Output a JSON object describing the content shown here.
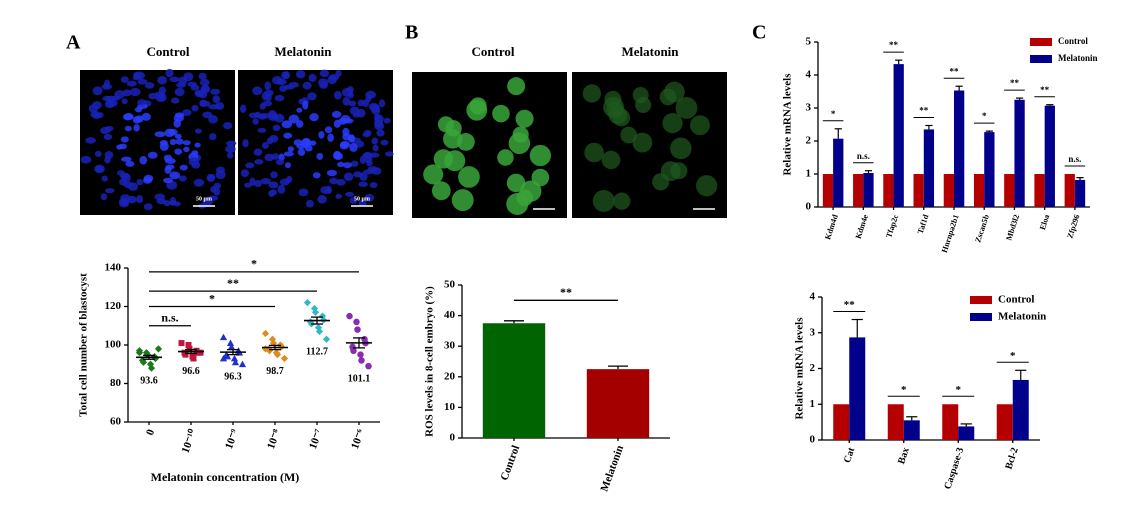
{
  "figure": {
    "panel_labels": [
      "A",
      "B",
      "C"
    ],
    "micrographs": [
      {
        "title": "Control",
        "scale_bar": "50 μm"
      },
      {
        "title": "Melatonin",
        "scale_bar": "50 μm"
      },
      {
        "title": "Control"
      },
      {
        "title": "Melatonin"
      }
    ]
  },
  "chart_data": [
    {
      "type": "dot",
      "categories": [
        "0",
        "10⁻¹⁰",
        "10⁻⁹",
        "10⁻⁸",
        "10⁻⁷",
        "10⁻⁶"
      ],
      "values": [
        93.6,
        96.6,
        96.3,
        98.7,
        112.7,
        101.1
      ],
      "errors": [
        1.0,
        1.0,
        1.3,
        1.1,
        1.8,
        2.6
      ],
      "points": [
        [
          97,
          96,
          95,
          94,
          93,
          92,
          91,
          90,
          88,
          98,
          96
        ],
        [
          101,
          100,
          98,
          97,
          96,
          96,
          95,
          94,
          93,
          96
        ],
        [
          104,
          101,
          99,
          97,
          96,
          95,
          94,
          93,
          91,
          90,
          93
        ],
        [
          106,
          103,
          101,
          100,
          99,
          98,
          97,
          96,
          95,
          93,
          98
        ],
        [
          122,
          119,
          117,
          115,
          113,
          112,
          111,
          109,
          107,
          103
        ],
        [
          115,
          112,
          108,
          103,
          101,
          99,
          97,
          95,
          92,
          89
        ]
      ],
      "colors": [
        "#1a7a1a",
        "#c0143c",
        "#2030d0",
        "#e08a1e",
        "#30b8c8",
        "#8a2bb0"
      ],
      "markers": [
        "diamond",
        "square",
        "triangle",
        "diamond",
        "diamond",
        "circle"
      ],
      "xlabel": "Melatonin concentration (M)",
      "ylabel": "Total cell number of blastocyst",
      "ylim": [
        60,
        140
      ],
      "yticks": [
        60,
        80,
        100,
        120,
        140
      ],
      "brackets": [
        {
          "from": "0",
          "to": "10⁻¹⁰",
          "y": 110,
          "label": "n.s."
        },
        {
          "from": "0",
          "to": "10⁻⁸",
          "y": 120,
          "label": "*"
        },
        {
          "from": "0",
          "to": "10⁻⁷",
          "y": 128,
          "label": "**"
        },
        {
          "from": "0",
          "to": "10⁻⁶",
          "y": 138,
          "label": "*"
        }
      ]
    },
    {
      "type": "bar",
      "categories": [
        "Control",
        "Melatonin"
      ],
      "values": [
        37.5,
        22.5
      ],
      "errors": [
        0.8,
        1.0
      ],
      "colors": [
        "#006400",
        "#a50000"
      ],
      "ylabel": "ROS levels in 8-cell embryo (%)",
      "ylim": [
        0,
        50
      ],
      "yticks": [
        0,
        10,
        20,
        30,
        40,
        50
      ],
      "brackets": [
        {
          "from": "Control",
          "to": "Melatonin",
          "y": 45,
          "label": "**"
        }
      ]
    },
    {
      "type": "grouped_bar",
      "categories": [
        "Kdm4d",
        "Kdm4e",
        "Tfap2c",
        "Taf1d",
        "Hnrnpa2b1",
        "Zscan5b",
        "Mbd3l2",
        "Eloa",
        "Zfp296"
      ],
      "series": [
        {
          "name": "Control",
          "color": "#b40000",
          "values": [
            1,
            1,
            1,
            1,
            1,
            1,
            1,
            1,
            1
          ]
        },
        {
          "name": "Melatonin",
          "color": "#00008b",
          "values": [
            2.07,
            1.03,
            4.33,
            2.35,
            3.53,
            2.27,
            3.25,
            3.07,
            0.82
          ],
          "errors": [
            0.3,
            0.07,
            0.12,
            0.12,
            0.13,
            0.03,
            0.05,
            0.03,
            0.07
          ]
        }
      ],
      "significance": [
        "*",
        "n.s.",
        "**",
        "**",
        "**",
        "*",
        "**",
        "**",
        "n.s."
      ],
      "ylabel": "Relative mRNA levels",
      "ylim": [
        0,
        5
      ],
      "yticks": [
        0,
        1,
        2,
        3,
        4,
        5
      ],
      "legend": "upper right"
    },
    {
      "type": "grouped_bar",
      "categories": [
        "Cat",
        "Bax",
        "Caspase-3",
        "Bcl-2"
      ],
      "series": [
        {
          "name": "Control",
          "color": "#b40000",
          "values": [
            1,
            1,
            1,
            1
          ]
        },
        {
          "name": "Melatonin",
          "color": "#00008b",
          "values": [
            2.87,
            0.55,
            0.38,
            1.68
          ],
          "errors": [
            0.5,
            0.1,
            0.07,
            0.27
          ]
        }
      ],
      "significance": [
        "**",
        "*",
        "*",
        "*"
      ],
      "ylabel": "Relative mRNA levels",
      "ylim": [
        0,
        4
      ],
      "yticks": [
        0,
        1,
        2,
        3,
        4
      ],
      "legend": "upper right"
    }
  ]
}
